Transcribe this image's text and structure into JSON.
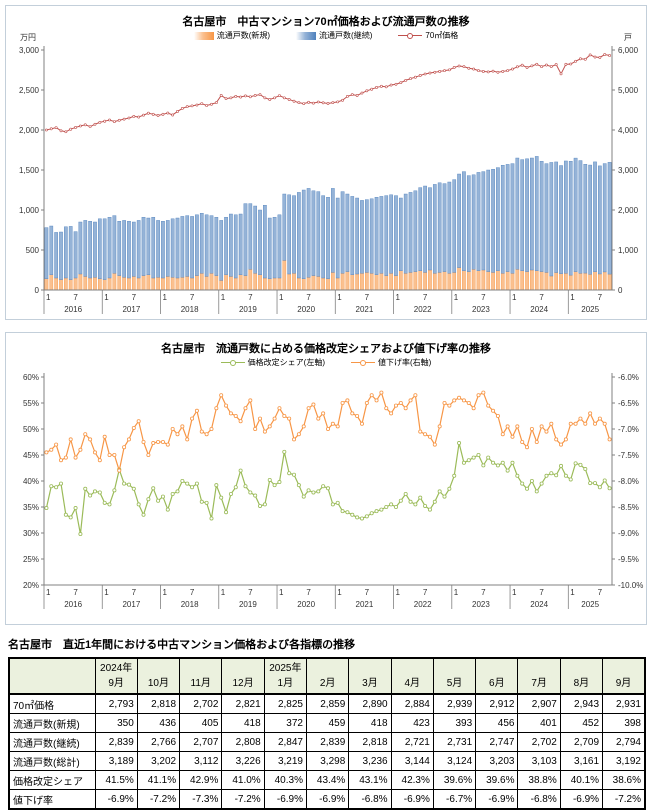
{
  "chart1": {
    "title": "名古屋市　中古マンション70㎡価格および流通戸数の推移",
    "unit_left": "万円",
    "unit_right": "戸",
    "legend": [
      {
        "label": "流通戸数(新規)",
        "color": "#F79646",
        "fill": "#FAC08F",
        "type": "bar"
      },
      {
        "label": "流通戸数(継続)",
        "color": "#4F81BD",
        "fill": "#95B3D7",
        "type": "bar"
      },
      {
        "label": "70㎡価格",
        "color": "#C0504D",
        "type": "line"
      }
    ]
  },
  "chart2": {
    "title": "名古屋市　流通戸数に占める価格改定シェアおよび値下げ率の推移",
    "legend": [
      {
        "label": "価格改定シェア(左軸)",
        "color": "#9BBB59",
        "type": "line"
      },
      {
        "label": "値下げ率(右軸)",
        "color": "#F79646",
        "type": "line"
      }
    ]
  },
  "chart_data": [
    {
      "type": "bar",
      "title": "名古屋市　中古マンション70㎡価格および流通戸数の推移",
      "x_start": "2016-01",
      "x_end": "2025-09",
      "years": [
        "2016",
        "2017",
        "2018",
        "2019",
        "2020",
        "2021",
        "2022",
        "2023",
        "2024",
        "2025"
      ],
      "month_tick_labels": [
        "1",
        "7"
      ],
      "grid": false,
      "legend_position": "top",
      "left_axis": {
        "label": "万円",
        "min": 0,
        "max": 3000,
        "step": 500,
        "ticks": [
          "3,000",
          "2,500",
          "2,000",
          "1,500",
          "1,000",
          "500",
          "0"
        ]
      },
      "right_axis": {
        "label": "戸",
        "min": 0,
        "max": 6000,
        "step": 1000,
        "ticks": [
          "6,000",
          "5,000",
          "4,000",
          "3,000",
          "2,000",
          "1,000",
          "0"
        ]
      },
      "series": [
        {
          "name": "流通戸数(新規)",
          "type": "bar",
          "axis": "right",
          "fill": "#FAC08F",
          "stroke": "#F79646",
          "values": [
            280,
            380,
            300,
            260,
            300,
            260,
            300,
            400,
            340,
            300,
            320,
            280,
            260,
            300,
            420,
            360,
            320,
            300,
            340,
            300,
            360,
            380,
            300,
            320,
            300,
            340,
            320,
            300,
            320,
            340,
            300,
            360,
            420,
            340,
            420,
            360,
            240,
            380,
            340,
            300,
            380,
            360,
            520,
            420,
            380,
            300,
            280,
            300,
            300,
            740,
            400,
            420,
            300,
            280,
            320,
            360,
            340,
            300,
            280,
            440,
            300,
            420,
            460,
            380,
            400,
            420,
            440,
            420,
            380,
            420,
            360,
            420,
            360,
            480,
            420,
            440,
            460,
            480,
            440,
            500,
            420,
            440,
            460,
            420,
            440,
            560,
            480,
            460,
            520,
            480,
            500,
            460,
            440,
            480,
            420,
            460,
            420,
            520,
            480,
            460,
            500,
            480,
            460,
            440,
            350,
            436,
            405,
            418,
            372,
            459,
            418,
            423,
            393,
            456,
            401,
            452,
            398
          ]
        },
        {
          "name": "流通戸数(継続)",
          "type": "bar",
          "axis": "right",
          "fill": "#95B3D7",
          "stroke": "#4F81BD",
          "values": [
            1280,
            1220,
            1140,
            1190,
            1280,
            1330,
            1160,
            1300,
            1400,
            1420,
            1380,
            1500,
            1520,
            1520,
            1440,
            1360,
            1420,
            1420,
            1360,
            1440,
            1460,
            1420,
            1520,
            1420,
            1420,
            1400,
            1460,
            1500,
            1520,
            1520,
            1540,
            1520,
            1500,
            1540,
            1440,
            1460,
            1500,
            1440,
            1560,
            1580,
            1520,
            1800,
            1640,
            1680,
            1620,
            1820,
            1520,
            1520,
            1580,
            1660,
            1980,
            1940,
            2140,
            2220,
            2220,
            2120,
            2120,
            2060,
            2040,
            2100,
            2000,
            2040,
            1940,
            1960,
            1900,
            1820,
            1820,
            1860,
            1940,
            1920,
            2000,
            1960,
            2000,
            1820,
            1980,
            2000,
            2020,
            2080,
            2160,
            2060,
            2220,
            2240,
            2200,
            2280,
            2320,
            2340,
            2480,
            2400,
            2360,
            2460,
            2460,
            2540,
            2580,
            2580,
            2700,
            2680,
            2740,
            2780,
            2780,
            2820,
            2800,
            2860,
            2760,
            2720,
            2839,
            2766,
            2707,
            2808,
            2847,
            2839,
            2818,
            2721,
            2731,
            2747,
            2702,
            2709,
            2794
          ]
        },
        {
          "name": "70㎡価格",
          "type": "line",
          "axis": "left",
          "stroke": "#C0504D",
          "values": [
            2000,
            2015,
            2030,
            1990,
            1978,
            2010,
            2032,
            2050,
            2065,
            2042,
            2072,
            2095,
            2110,
            2125,
            2105,
            2122,
            2136,
            2150,
            2170,
            2162,
            2186,
            2210,
            2196,
            2182,
            2196,
            2212,
            2188,
            2232,
            2270,
            2292,
            2302,
            2312,
            2330,
            2306,
            2322,
            2342,
            2432,
            2392,
            2402,
            2420,
            2412,
            2426,
            2416,
            2432,
            2442,
            2402,
            2382,
            2402,
            2430,
            2402,
            2382,
            2360,
            2342,
            2330,
            2346,
            2336,
            2350,
            2340,
            2332,
            2342,
            2352,
            2372,
            2420,
            2442,
            2432,
            2462,
            2490,
            2510,
            2532,
            2546,
            2540,
            2562,
            2572,
            2592,
            2620,
            2642,
            2660,
            2682,
            2700,
            2712,
            2722,
            2732,
            2742,
            2752,
            2782,
            2800,
            2792,
            2772,
            2762,
            2742,
            2732,
            2726,
            2736,
            2722,
            2732,
            2742,
            2762,
            2790,
            2810,
            2782,
            2802,
            2822,
            2792,
            2812,
            2793,
            2818,
            2702,
            2821,
            2825,
            2859,
            2890,
            2884,
            2939,
            2912,
            2907,
            2943,
            2931
          ]
        }
      ]
    },
    {
      "type": "line",
      "title": "名古屋市　流通戸数に占める価格改定シェアおよび値下げ率の推移",
      "x_start": "2016-01",
      "x_end": "2025-09",
      "years": [
        "2016",
        "2017",
        "2018",
        "2019",
        "2020",
        "2021",
        "2022",
        "2023",
        "2024",
        "2025"
      ],
      "month_tick_labels": [
        "1",
        "7"
      ],
      "grid": false,
      "legend_position": "top",
      "left_axis": {
        "label": "",
        "min": 20,
        "max": 60,
        "step": 5,
        "ticks": [
          "60%",
          "55%",
          "50%",
          "45%",
          "40%",
          "35%",
          "30%",
          "25%",
          "20%"
        ]
      },
      "right_axis": {
        "label": "",
        "min": -10,
        "max": -6,
        "step": 0.5,
        "ticks": [
          "-6.0%",
          "-6.5%",
          "-7.0%",
          "-7.5%",
          "-8.0%",
          "-8.5%",
          "-9.0%",
          "-9.5%",
          "-10.0%"
        ]
      },
      "series": [
        {
          "name": "価格改定シェア(左軸)",
          "type": "line",
          "axis": "left",
          "stroke": "#9BBB59",
          "values": [
            34.8,
            39.0,
            38.8,
            39.5,
            33.5,
            33.0,
            34.8,
            29.8,
            38.5,
            37.2,
            38.0,
            37.8,
            35.8,
            35.5,
            38.2,
            42.2,
            39.5,
            39.3,
            38.5,
            35.5,
            33.5,
            36.5,
            38.6,
            36.2,
            37.0,
            34.5,
            37.5,
            38.0,
            40.0,
            39.5,
            38.8,
            39.5,
            36.0,
            35.8,
            32.8,
            39.2,
            36.8,
            34.0,
            37.5,
            38.8,
            42.0,
            39.0,
            37.8,
            37.2,
            35.2,
            35.5,
            40.2,
            39.2,
            39.8,
            45.6,
            41.5,
            41.2,
            39.2,
            37.0,
            38.2,
            37.8,
            38.0,
            39.0,
            38.6,
            35.5,
            35.8,
            34.2,
            34.0,
            33.5,
            33.0,
            32.8,
            33.2,
            33.8,
            34.2,
            34.5,
            35.0,
            35.5,
            35.0,
            36.2,
            37.5,
            36.0,
            35.5,
            36.8,
            35.2,
            34.5,
            36.0,
            38.0,
            37.0,
            38.5,
            41.0,
            47.3,
            43.5,
            44.0,
            44.5,
            45.0,
            43.0,
            44.5,
            43.5,
            43.0,
            43.5,
            42.0,
            43.5,
            41.0,
            39.5,
            38.5,
            40.0,
            38.0,
            39.5,
            41.0,
            41.5,
            41.1,
            42.9,
            41.0,
            40.3,
            43.4,
            43.1,
            42.3,
            39.6,
            39.6,
            38.8,
            40.1,
            38.6
          ]
        },
        {
          "name": "値下げ率(右軸)",
          "type": "line",
          "axis": "right",
          "stroke": "#F79646",
          "values": [
            -7.45,
            -7.4,
            -7.3,
            -7.6,
            -7.55,
            -7.2,
            -7.55,
            -7.4,
            -7.1,
            -7.2,
            -7.45,
            -7.6,
            -7.15,
            -7.5,
            -7.5,
            -7.8,
            -7.35,
            -7.2,
            -6.98,
            -6.85,
            -7.25,
            -7.5,
            -7.27,
            -7.25,
            -7.25,
            -7.3,
            -7.0,
            -7.1,
            -6.95,
            -7.2,
            -6.8,
            -6.65,
            -7.05,
            -7.1,
            -7.0,
            -6.6,
            -6.35,
            -6.55,
            -6.7,
            -6.75,
            -6.85,
            -6.6,
            -6.45,
            -7.0,
            -6.8,
            -7.05,
            -6.95,
            -6.8,
            -6.6,
            -6.75,
            -6.8,
            -7.2,
            -7.1,
            -6.95,
            -6.6,
            -6.53,
            -6.8,
            -6.7,
            -7.0,
            -6.9,
            -6.95,
            -6.5,
            -6.45,
            -6.7,
            -6.75,
            -6.9,
            -6.5,
            -6.35,
            -6.45,
            -6.3,
            -6.6,
            -6.7,
            -6.55,
            -6.5,
            -6.6,
            -6.45,
            -6.35,
            -7.05,
            -7.1,
            -7.15,
            -7.3,
            -6.95,
            -6.5,
            -6.55,
            -6.45,
            -6.4,
            -6.45,
            -6.5,
            -6.6,
            -6.35,
            -6.3,
            -6.55,
            -6.65,
            -6.75,
            -7.1,
            -6.95,
            -7.15,
            -6.95,
            -7.25,
            -7.35,
            -7.0,
            -7.25,
            -6.95,
            -7.05,
            -6.9,
            -7.2,
            -7.3,
            -7.2,
            -6.9,
            -6.9,
            -6.8,
            -6.9,
            -6.7,
            -6.9,
            -6.8,
            -6.9,
            -7.2
          ]
        }
      ]
    }
  ],
  "table": {
    "title": "名古屋市　直近1年間における中古マンション価格および各指標の推移",
    "header_bg": "#ebf1de",
    "columns": [
      {
        "year": "2024年",
        "month": "9月"
      },
      {
        "year": "",
        "month": "10月"
      },
      {
        "year": "",
        "month": "11月"
      },
      {
        "year": "",
        "month": "12月"
      },
      {
        "year": "2025年",
        "month": "1月"
      },
      {
        "year": "",
        "month": "2月"
      },
      {
        "year": "",
        "month": "3月"
      },
      {
        "year": "",
        "month": "4月"
      },
      {
        "year": "",
        "month": "5月"
      },
      {
        "year": "",
        "month": "6月"
      },
      {
        "year": "",
        "month": "7月"
      },
      {
        "year": "",
        "month": "8月"
      },
      {
        "year": "",
        "month": "9月"
      }
    ],
    "rows": [
      {
        "label": "70㎡価格",
        "values": [
          "2,793",
          "2,818",
          "2,702",
          "2,821",
          "2,825",
          "2,859",
          "2,890",
          "2,884",
          "2,939",
          "2,912",
          "2,907",
          "2,943",
          "2,931"
        ]
      },
      {
        "label": "流通戸数(新規)",
        "values": [
          "350",
          "436",
          "405",
          "418",
          "372",
          "459",
          "418",
          "423",
          "393",
          "456",
          "401",
          "452",
          "398"
        ]
      },
      {
        "label": "流通戸数(継続)",
        "values": [
          "2,839",
          "2,766",
          "2,707",
          "2,808",
          "2,847",
          "2,839",
          "2,818",
          "2,721",
          "2,731",
          "2,747",
          "2,702",
          "2,709",
          "2,794"
        ]
      },
      {
        "label": "流通戸数(総計)",
        "values": [
          "3,189",
          "3,202",
          "3,112",
          "3,226",
          "3,219",
          "3,298",
          "3,236",
          "3,144",
          "3,124",
          "3,203",
          "3,103",
          "3,161",
          "3,192"
        ]
      },
      {
        "label": "価格改定シェア",
        "values": [
          "41.5%",
          "41.1%",
          "42.9%",
          "41.0%",
          "40.3%",
          "43.4%",
          "43.1%",
          "42.3%",
          "39.6%",
          "39.6%",
          "38.8%",
          "40.1%",
          "38.6%"
        ]
      },
      {
        "label": "値下げ率",
        "values": [
          "-6.9%",
          "-7.2%",
          "-7.3%",
          "-7.2%",
          "-6.9%",
          "-6.9%",
          "-6.8%",
          "-6.9%",
          "-6.7%",
          "-6.9%",
          "-6.8%",
          "-6.9%",
          "-7.2%"
        ]
      }
    ]
  }
}
